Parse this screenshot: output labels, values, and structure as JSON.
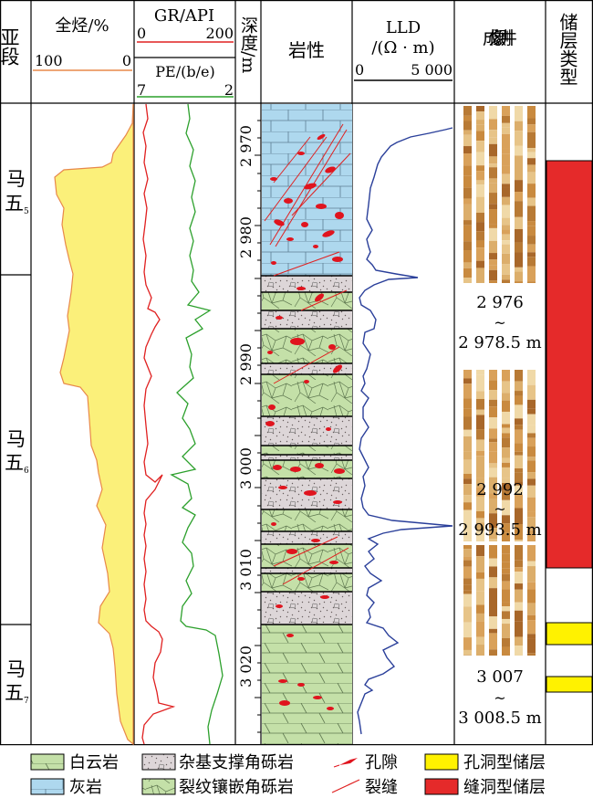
{
  "headers": {
    "subsection": "亚段",
    "total_hc": {
      "label": "全烃/%",
      "left": "100",
      "right": "0"
    },
    "gr": {
      "label": "GR/API",
      "left": "0",
      "right": "200"
    },
    "pe": {
      "label": "PE/(b/e)",
      "left": "7",
      "right": "2"
    },
    "depth": "深度/m",
    "lithology": "岩性",
    "lld": {
      "label": "LLD",
      "unit": "/(Ω · m)",
      "left": "0",
      "right": "5 000"
    },
    "imaging": "成像测井",
    "reservoir_type": "储层类型"
  },
  "subsections": [
    {
      "main": "马",
      "second": "五",
      "sub": "5"
    },
    {
      "main": "马",
      "second": "五",
      "sub": "6"
    },
    {
      "main": "马",
      "second": "五",
      "sub": "7"
    }
  ],
  "depth_ticks": [
    "2 970",
    "2 980",
    "2 990",
    "3 000",
    "3 010",
    "3 020"
  ],
  "image_captions": [
    {
      "from": "2 976",
      "tilde": "~",
      "to": "2 978.5 m"
    },
    {
      "from": "2 992",
      "tilde": "~",
      "to": "2 993.5 m"
    },
    {
      "from": "3 007",
      "tilde": "~",
      "to": "3 008.5 m"
    }
  ],
  "legend": [
    {
      "label": "白云岩",
      "icon": "dolomite"
    },
    {
      "label": "杂基支撑角砾岩",
      "icon": "matrix-breccia"
    },
    {
      "label": "孔隙",
      "icon": "pore"
    },
    {
      "label": "孔洞型储层",
      "icon": "vuggy-reservoir"
    },
    {
      "label": "灰岩",
      "icon": "limestone"
    },
    {
      "label": "裂纹镶嵌角砾岩",
      "icon": "crackle-breccia"
    },
    {
      "label": "裂缝",
      "icon": "fracture"
    },
    {
      "label": "缝洞型储层",
      "icon": "fracture-vug-reservoir"
    }
  ],
  "colors": {
    "total_hc_fill": "#fbf07a",
    "total_hc_line": "#e8884a",
    "gr": "#e02020",
    "pe": "#2ca02c",
    "lld": "#2a3f9a",
    "limestone": "#aed8ee",
    "dolomite": "#c4e0a8",
    "breccia": "#ddd6d8",
    "pore": "#e0141e",
    "vuggy": "#fff200",
    "fracture_vug": "#e52a2a"
  }
}
